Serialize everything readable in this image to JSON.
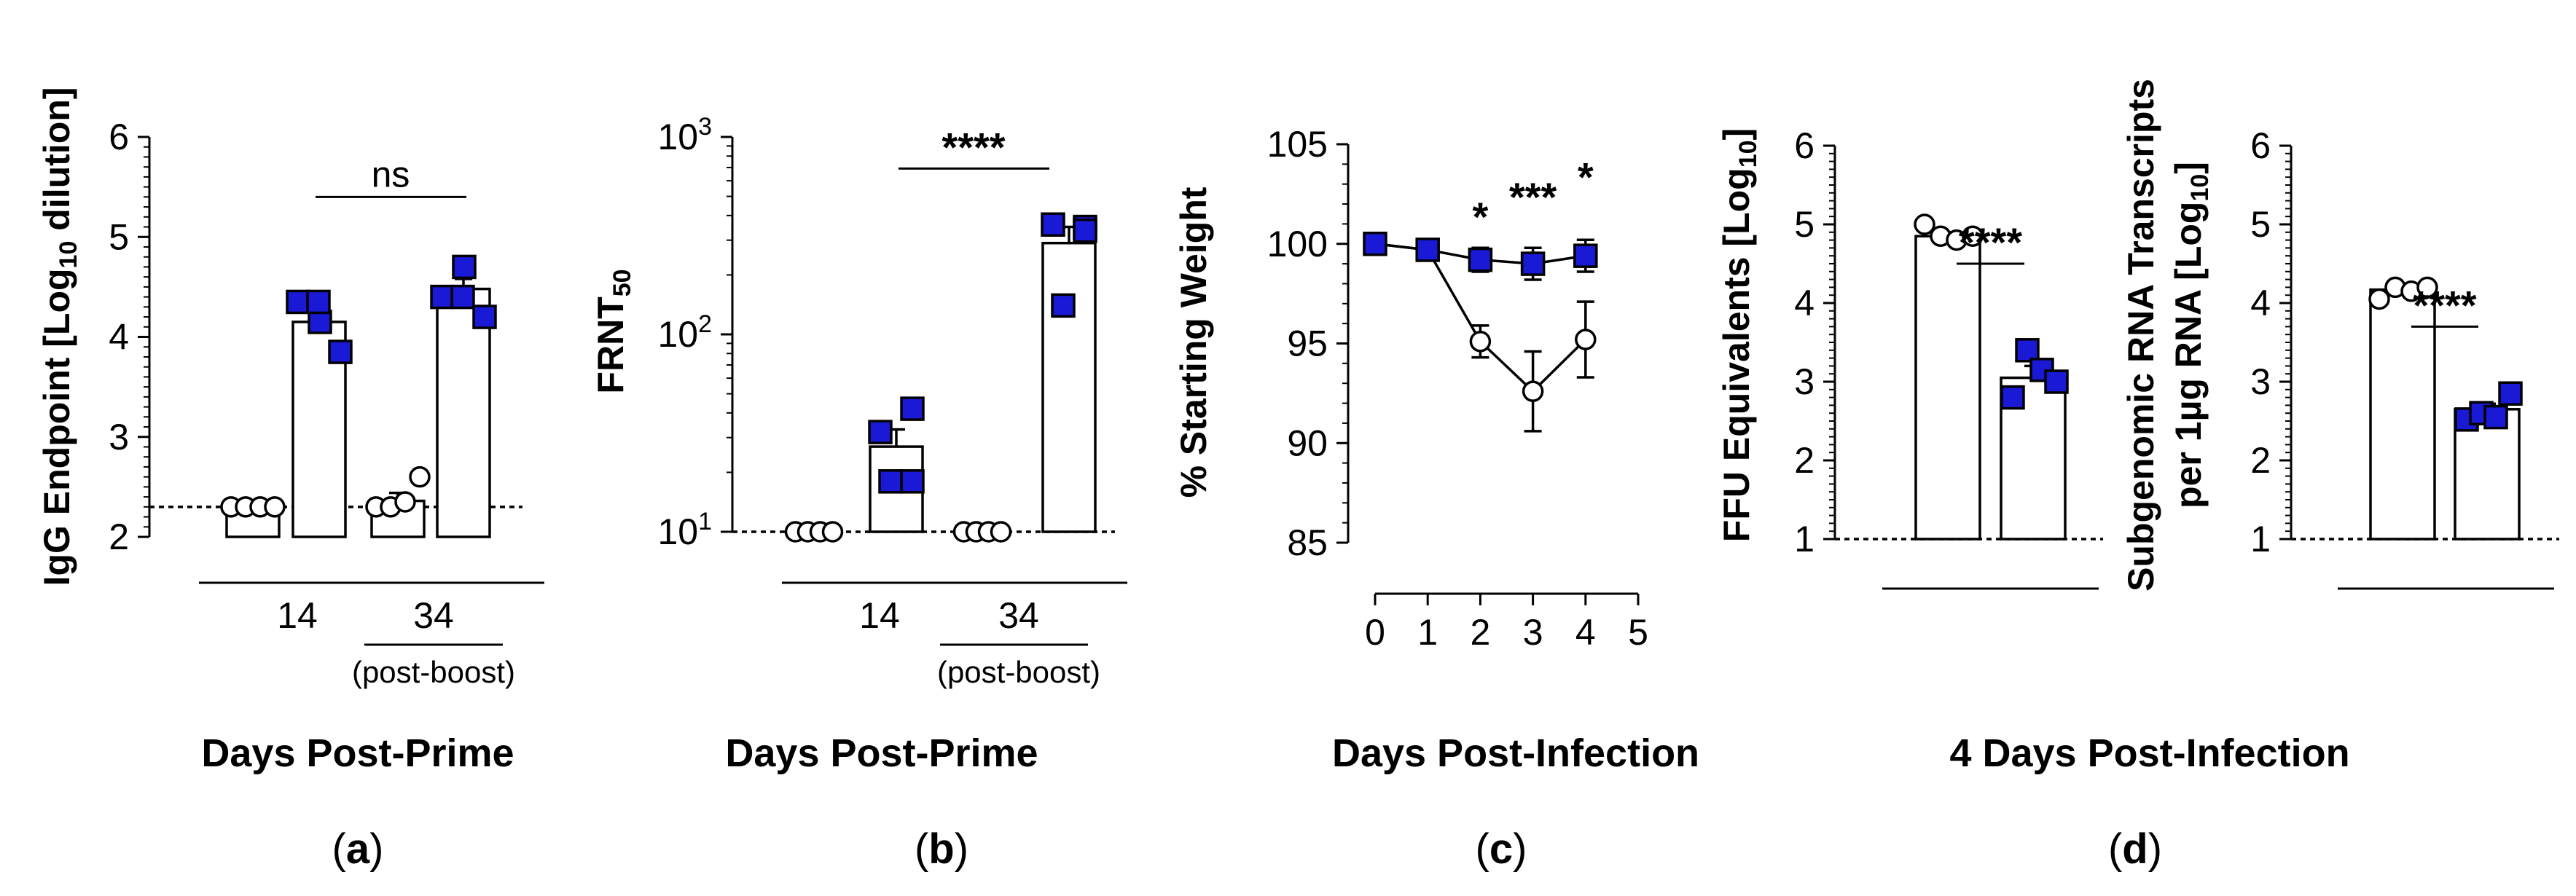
{
  "chart_data": [
    {
      "id": "a",
      "type": "bar",
      "panel_label": "(a)",
      "ylabel_pre": "IgG Endpoint [Log",
      "ylabel_sub": "10",
      "ylabel_post": " dilution]",
      "xlabel": "Days Post-Prime",
      "ylim": [
        2,
        6
      ],
      "yticks": [
        "2",
        "3",
        "4",
        "5",
        "6"
      ],
      "dashed_line": 2.3,
      "groups": [
        {
          "label": "14",
          "sublabel": ""
        },
        {
          "label": "34",
          "sublabel": "(post-boost)"
        }
      ],
      "series": [
        {
          "name": "open-circle",
          "means": [
            2.3,
            2.36
          ],
          "errors": [
            0,
            0.08
          ],
          "points": [
            [
              2.3,
              2.3,
              2.3,
              2.3
            ],
            [
              2.3,
              2.3,
              2.35,
              2.6
            ]
          ]
        },
        {
          "name": "blue-square",
          "means": [
            4.15,
            4.48
          ],
          "errors": [
            0.13,
            0.1
          ],
          "points": [
            [
              4.35,
              4.15,
              4.35,
              3.85
            ],
            [
              4.4,
              4.7,
              4.4,
              4.2
            ]
          ]
        }
      ],
      "comparison": {
        "label": "ns",
        "from_group": 0,
        "to_group": 1,
        "y": 5.4
      }
    },
    {
      "id": "b",
      "type": "bar",
      "panel_label": "(b)",
      "ylabel_pre": "FRNT",
      "ylabel_sub": "50",
      "ylabel_post": "",
      "xlabel": "Days Post-Prime",
      "yscale": "log",
      "ylim_log10": [
        1,
        3
      ],
      "yticks": [
        {
          "base": "10",
          "exp": "1"
        },
        {
          "base": "10",
          "exp": "2"
        },
        {
          "base": "10",
          "exp": "3"
        }
      ],
      "dashed_line": 10,
      "groups": [
        {
          "label": "14",
          "sublabel": ""
        },
        {
          "label": "34",
          "sublabel": "(post-boost)"
        }
      ],
      "series": [
        {
          "name": "open-circle",
          "means": [
            10,
            10
          ],
          "errors": [
            0,
            0
          ],
          "points": [
            [
              10,
              10,
              10,
              10
            ],
            [
              10,
              10,
              10,
              10
            ]
          ]
        },
        {
          "name": "blue-square",
          "means": [
            27,
            290
          ],
          "errors": [
            6,
            60
          ],
          "points": [
            [
              32,
              42,
              18,
              18
            ],
            [
              360,
              350,
              335,
              140
            ]
          ]
        }
      ],
      "comparison": {
        "label": "****",
        "from_group": 0,
        "to_group": 1,
        "y_log10": 2.84
      }
    },
    {
      "id": "c",
      "type": "line",
      "panel_label": "(c)",
      "ylabel": "% Starting Weight",
      "xlabel": "Days Post-Infection",
      "x": [
        0,
        1,
        2,
        3,
        4
      ],
      "xticks": [
        "0",
        "1",
        "2",
        "3",
        "4",
        "5"
      ],
      "xlim": [
        0,
        5
      ],
      "ylim": [
        85,
        105
      ],
      "yticks": [
        "85",
        "90",
        "95",
        "100",
        "105"
      ],
      "series": [
        {
          "name": "open-circle",
          "values": [
            100,
            99.7,
            95.1,
            92.6,
            95.2
          ],
          "errors": [
            0.2,
            0.3,
            0.8,
            2.0,
            1.9
          ]
        },
        {
          "name": "blue-square",
          "values": [
            100,
            99.7,
            99.2,
            99.0,
            99.4
          ],
          "errors": [
            0.2,
            0.3,
            0.6,
            0.8,
            0.8
          ]
        }
      ],
      "annotations": [
        {
          "x": 2,
          "y": 101.3,
          "label": "*"
        },
        {
          "x": 3,
          "y": 102.3,
          "label": "***"
        },
        {
          "x": 4,
          "y": 103.3,
          "label": "*"
        }
      ]
    },
    {
      "id": "d1",
      "type": "bar",
      "panel_label": "(d)",
      "ylabel_pre": "FFU Equivalents [Log",
      "ylabel_sub": "10",
      "ylabel_post": "]",
      "xlabel": "4 Days Post-Infection",
      "ylim": [
        1,
        6
      ],
      "yticks": [
        "1",
        "2",
        "3",
        "4",
        "5",
        "6"
      ],
      "dashed_line": 1,
      "series": [
        {
          "name": "open-circle",
          "mean": 4.85,
          "error": 0.05,
          "points": [
            5.0,
            4.85,
            4.8,
            4.85
          ]
        },
        {
          "name": "blue-square",
          "mean": 3.05,
          "error": 0.15,
          "points": [
            2.8,
            3.4,
            3.15,
            3.0
          ]
        }
      ],
      "comparison": {
        "label": "****",
        "y": 4.5
      }
    },
    {
      "id": "d2",
      "type": "bar",
      "panel_label": "",
      "ylabel_line1": "Subgenomic RNA Transcripts",
      "ylabel_pre": "per 1µg RNA [Log",
      "ylabel_sub": "10",
      "ylabel_post": "]",
      "xlabel": "",
      "ylim": [
        1,
        6
      ],
      "yticks": [
        "1",
        "2",
        "3",
        "4",
        "5",
        "6"
      ],
      "dashed_line": 1,
      "series": [
        {
          "name": "open-circle",
          "mean": 4.17,
          "error": 0.04,
          "points": [
            4.05,
            4.2,
            4.15,
            4.2
          ]
        },
        {
          "name": "blue-square",
          "mean": 2.65,
          "error": 0.07,
          "points": [
            2.52,
            2.6,
            2.55,
            2.85
          ]
        }
      ],
      "comparison": {
        "label": "****",
        "y": 3.7
      }
    }
  ]
}
